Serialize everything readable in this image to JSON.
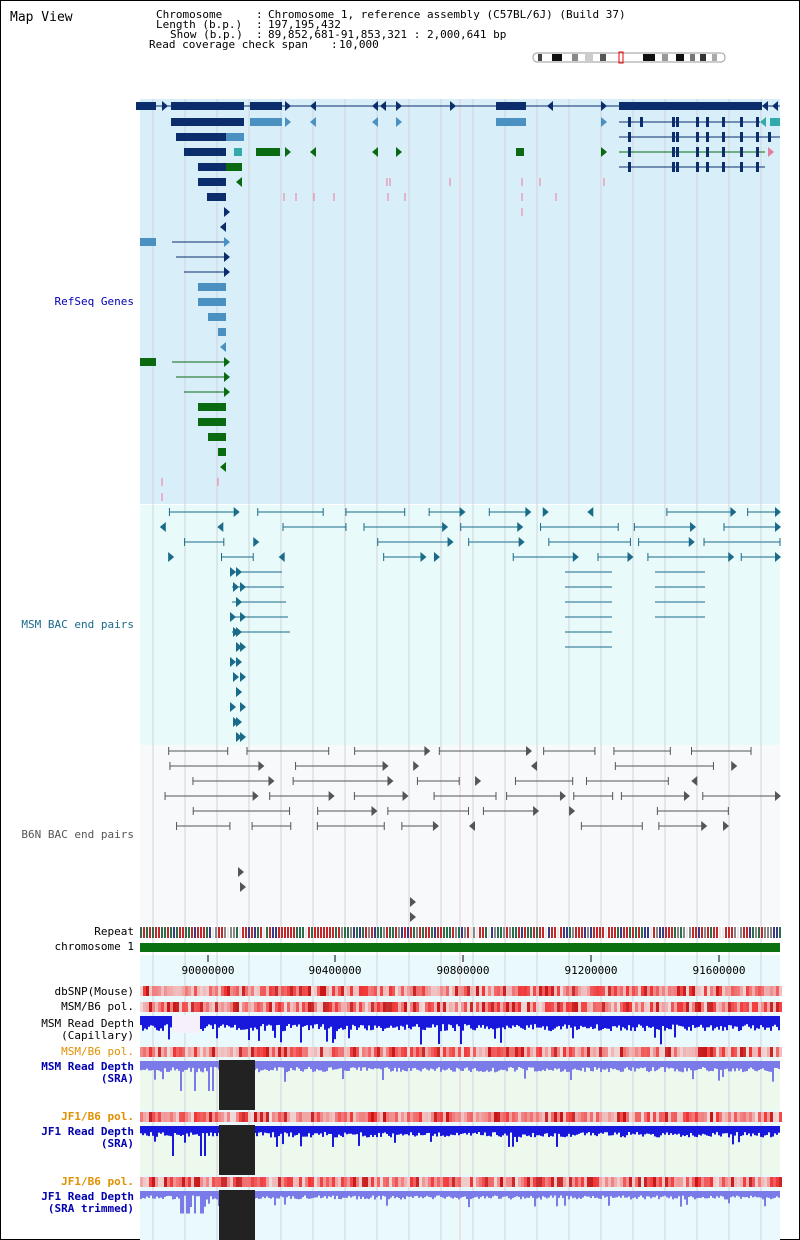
{
  "view_title": "Map View",
  "info": {
    "chromosome_key": "Chromosome",
    "chromosome_val": "Chromosome 1, reference assembly (C57BL/6J) (Build 37)",
    "length_key": "Length (b.p.)",
    "length_val": "197,195,432",
    "show_key": "Show (b.p.)",
    "show_val": "89,852,681-91,853,321 : 2,000,641 bp",
    "coverage_key": "Read coverage check span",
    "coverage_val": "10,000"
  },
  "tracks": {
    "refseq": "RefSeq Genes",
    "msm_bac": "MSM BAC end pairs",
    "b6n_bac": "B6N BAC end pairs",
    "repeat": "Repeat",
    "chromosome": "chromosome 1",
    "dbsnp": "dbSNP(Mouse)",
    "msm_b6_pol_1": "MSM/B6 pol.",
    "msm_depth_cap_1": "MSM Read Depth",
    "msm_depth_cap_2": "(Capillary)",
    "msm_b6_pol_2": "MSM/B6 pol.",
    "msm_depth_sra_1": "MSM Read Depth",
    "msm_depth_sra_2": "(SRA)",
    "jf1_b6_pol_1": "JF1/B6 pol.",
    "jf1_depth_sra_1": "JF1 Read Depth",
    "jf1_depth_sra_2": "(SRA)",
    "jf1_b6_pol_2": "JF1/B6 pol.",
    "jf1_depth_trim_1": "JF1 Read Depth",
    "jf1_depth_trim_2": "(SRA trimmed)"
  },
  "axis_ticks": [
    "90000000",
    "90400000",
    "90800000",
    "91200000",
    "91600000"
  ],
  "colors": {
    "refseq_dark": "#0c2d6b",
    "refseq_light": "#4a90c0",
    "refseq_green": "#0a6a12",
    "refseq_bg": "#d8eef8",
    "bac_bg": "#e8fafa",
    "bac_line": "#1a6a8a",
    "b6n_line": "#555555",
    "chromosome": "#0a7010",
    "depth_blue": "#1818dd",
    "depth_light_blue": "#7a7ae8",
    "label_blue": "#0000b0",
    "label_orange": "#e09000"
  }
}
